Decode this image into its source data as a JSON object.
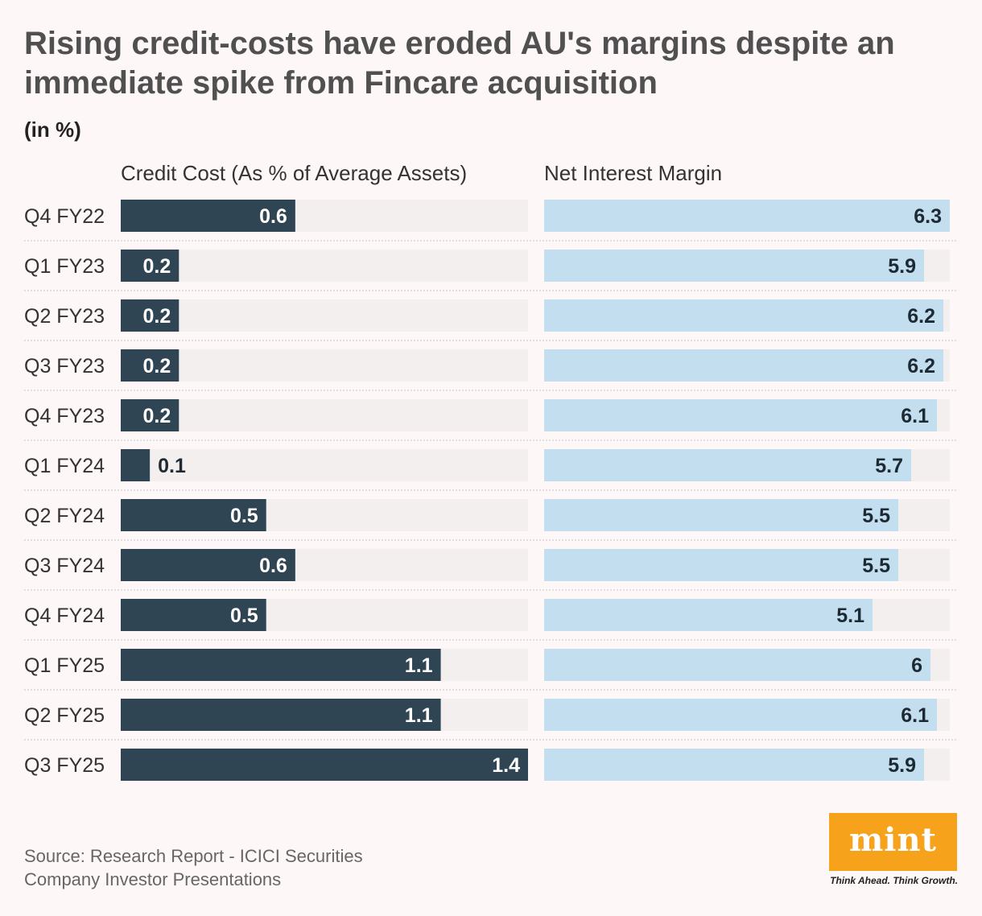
{
  "title": "Rising credit-costs have eroded AU's margins despite an immediate spike from Fincare acquisition",
  "unit_label": "(in %)",
  "source": {
    "line1": "Source: Research Report - ICICI Securities",
    "line2": "Company Investor Presentations"
  },
  "logo": {
    "text": "mint",
    "tagline": "Think Ahead. Think Growth."
  },
  "colors": {
    "credit_bar": "#2f4554",
    "nim_bar": "#c2deef",
    "track": "#f3efee",
    "divider": "#c8c4c3"
  },
  "chart_data": {
    "type": "bar",
    "orientation": "horizontal",
    "categories": [
      "Q4 FY22",
      "Q1 FY23",
      "Q2 FY23",
      "Q3 FY23",
      "Q4 FY23",
      "Q1 FY24",
      "Q2 FY24",
      "Q3 FY24",
      "Q4 FY24",
      "Q1 FY25",
      "Q2 FY25",
      "Q3 FY25"
    ],
    "series": [
      {
        "name": "Credit Cost (As % of Average Assets)",
        "values": [
          0.6,
          0.2,
          0.2,
          0.2,
          0.2,
          0.1,
          0.5,
          0.6,
          0.5,
          1.1,
          1.1,
          1.4
        ],
        "labels": [
          "0.6",
          "0.2",
          "0.2",
          "0.2",
          "0.2",
          "0.1",
          "0.5",
          "0.6",
          "0.5",
          "1.1",
          "1.1",
          "1.4"
        ],
        "xlim": [
          0,
          1.4
        ]
      },
      {
        "name": "Net Interest Margin",
        "values": [
          6.3,
          5.9,
          6.2,
          6.2,
          6.1,
          5.7,
          5.5,
          5.5,
          5.1,
          6.0,
          6.1,
          5.9
        ],
        "labels": [
          "6.3",
          "5.9",
          "6.2",
          "6.2",
          "6.1",
          "5.7",
          "5.5",
          "5.5",
          "5.1",
          "6",
          "6.1",
          "5.9"
        ],
        "xlim": [
          0,
          6.3
        ]
      }
    ]
  }
}
